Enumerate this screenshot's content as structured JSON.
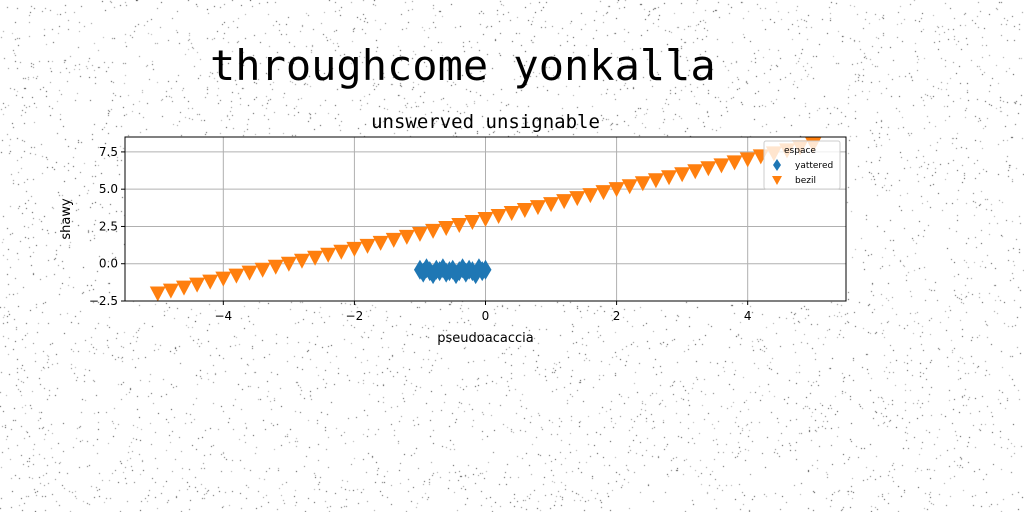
{
  "page_title": "throughcome yonkalla",
  "chart_data": {
    "type": "scatter",
    "title": "unswerved unsignable",
    "xlabel": "pseudoacaccia",
    "ylabel": "shawy",
    "xlim": [
      -5.5,
      5.5
    ],
    "ylim": [
      -2.5,
      8.5
    ],
    "x_ticks": [
      -4,
      -2,
      0,
      2,
      4
    ],
    "x_tick_labels": [
      "−4",
      "−2",
      "0",
      "2",
      "4"
    ],
    "y_ticks": [
      -2.5,
      0.0,
      2.5,
      5.0,
      7.5
    ],
    "y_tick_labels": [
      "−2.5",
      "0.0",
      "2.5",
      "5.0",
      "7.5"
    ],
    "grid": true,
    "legend": {
      "title": "espace",
      "placement": "top-right"
    },
    "series": [
      {
        "name": "yattered",
        "marker": "thin_diamond",
        "color": "#1f77b4",
        "x": [
          -1.0,
          -0.95,
          -0.9,
          -0.85,
          -0.8,
          -0.75,
          -0.7,
          -0.65,
          -0.6,
          -0.55,
          -0.5,
          -0.45,
          -0.4,
          -0.35,
          -0.3,
          -0.25,
          -0.2,
          -0.15,
          -0.1,
          -0.05,
          0.0
        ],
        "y": [
          -0.4,
          -0.6,
          -0.3,
          -0.5,
          -0.7,
          -0.4,
          -0.5,
          -0.3,
          -0.6,
          -0.5,
          -0.4,
          -0.7,
          -0.5,
          -0.3,
          -0.6,
          -0.4,
          -0.5,
          -0.7,
          -0.3,
          -0.5,
          -0.4
        ]
      },
      {
        "name": "bezil",
        "marker": "triangle_down",
        "color": "#ff7f0e",
        "x": [
          -5.0,
          -4.8,
          -4.6,
          -4.4,
          -4.2,
          -4.0,
          -3.8,
          -3.6,
          -3.4,
          -3.2,
          -3.0,
          -2.8,
          -2.6,
          -2.4,
          -2.2,
          -2.0,
          -1.8,
          -1.6,
          -1.4,
          -1.2,
          -1.0,
          -0.8,
          -0.6,
          -0.4,
          -0.2,
          0.0,
          0.2,
          0.4,
          0.6,
          0.8,
          1.0,
          1.2,
          1.4,
          1.6,
          1.8,
          2.0,
          2.2,
          2.4,
          2.6,
          2.8,
          3.0,
          3.2,
          3.4,
          3.6,
          3.8,
          4.0,
          4.2,
          4.4,
          4.6,
          4.8,
          5.0
        ],
        "y": [
          -2.0,
          -1.8,
          -1.6,
          -1.4,
          -1.2,
          -1.0,
          -0.8,
          -0.6,
          -0.4,
          -0.2,
          0.0,
          0.2,
          0.4,
          0.6,
          0.8,
          1.0,
          1.2,
          1.4,
          1.6,
          1.8,
          2.0,
          2.2,
          2.4,
          2.6,
          2.8,
          3.0,
          3.2,
          3.4,
          3.6,
          3.8,
          4.0,
          4.2,
          4.4,
          4.6,
          4.8,
          5.0,
          5.2,
          5.4,
          5.6,
          5.8,
          6.0,
          6.2,
          6.4,
          6.6,
          6.8,
          7.0,
          7.2,
          7.4,
          7.6,
          7.8,
          8.0
        ]
      }
    ]
  }
}
